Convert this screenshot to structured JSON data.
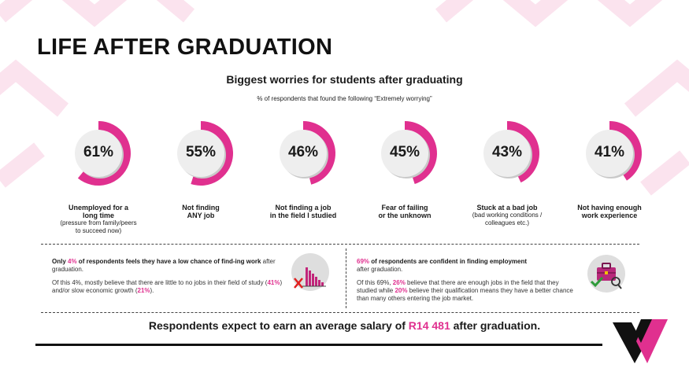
{
  "title": "LIFE AFTER GRADUATION",
  "subtitle": "Biggest worries for students after graduating",
  "note": "% of respondents that found the following “Extremely worrying”",
  "colors": {
    "accent": "#e0308f",
    "dark": "#111111",
    "pattern": "#fbe3ee",
    "disc": "#eeeeee"
  },
  "worries": [
    {
      "pct": 61,
      "pct_label": "61%",
      "bold": "Unemployed for a\nlong time",
      "note": "(pressure from family/peers\nto succeed now)"
    },
    {
      "pct": 55,
      "pct_label": "55%",
      "bold": "Not finding\nANY job",
      "note": ""
    },
    {
      "pct": 46,
      "pct_label": "46%",
      "bold": "Not finding a job\nin the field I studied",
      "note": ""
    },
    {
      "pct": 45,
      "pct_label": "45%",
      "bold": "Fear of failing\nor the unknown",
      "note": ""
    },
    {
      "pct": 43,
      "pct_label": "43%",
      "bold": "Stuck at a bad job",
      "note": "(bad working conditions /\ncolleagues etc.)"
    },
    {
      "pct": 41,
      "pct_label": "41%",
      "bold": "Not having enough\nwork experience",
      "note": ""
    }
  ],
  "left_box": {
    "l1_a": "Only ",
    "l1_pct": "4%",
    "l1_b": " of respondents feels they have a low chance of find-ing work",
    "l1_c": " after graduation.",
    "l2_a": "Of this 4%, mostly believe that there are little to no jobs in their field of study (",
    "l2_p1": "41%",
    "l2_b": ") and/or slow economic growth (",
    "l2_p2": "21%",
    "l2_c": ").",
    "icon": "declining-bar-chart-icon"
  },
  "right_box": {
    "l1_pct": "69%",
    "l1_a": " of respondents are confident in finding employment",
    "l1_b": "after graduation.",
    "l2_a": "Of this 69%, ",
    "l2_p1": "26%",
    "l2_b": " believe that there are enough jobs in the field that they studied while ",
    "l2_p2": "20%",
    "l2_c": " believe their qualification means they have a better chance than many others entering the job market.",
    "icon": "briefcase-check-icon"
  },
  "salary": {
    "a": "Respondents expect to earn an average salary of ",
    "amount": "R14 481",
    "b": " after graduation."
  },
  "logo": "brand-v-logo"
}
